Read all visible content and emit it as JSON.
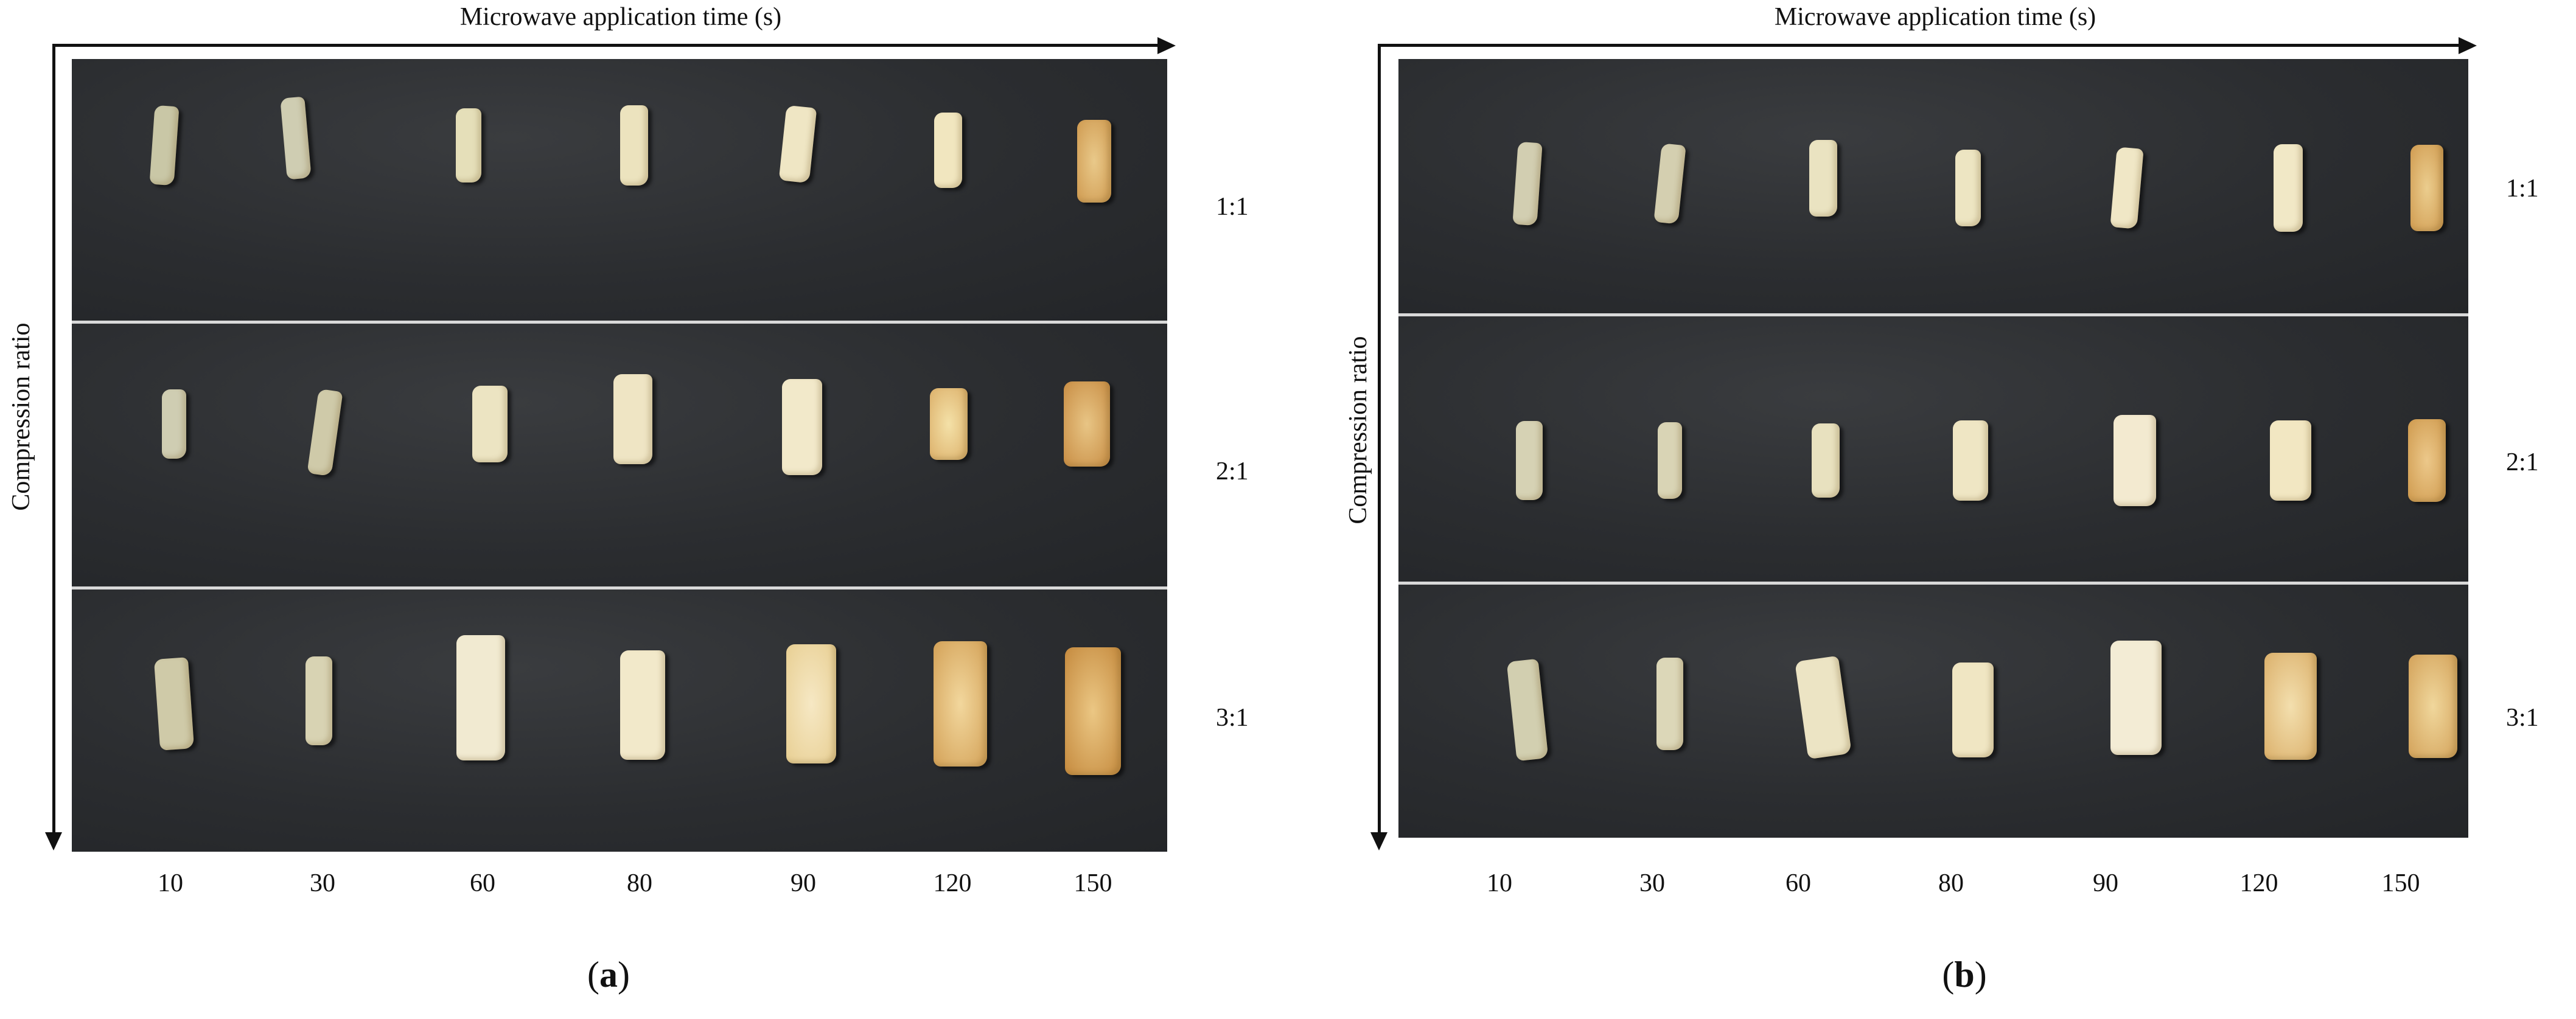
{
  "panels": [
    {
      "id": "a",
      "label_open": "(",
      "label_letter": "a",
      "label_close": ")",
      "x_axis_title": "Microwave application time (s)",
      "y_axis_title": "Compression ratio",
      "x_ticks": [
        "10",
        "30",
        "60",
        "80",
        "90",
        "120",
        "150"
      ],
      "rows": [
        "1:1",
        "2:1",
        "3:1"
      ]
    },
    {
      "id": "b",
      "label_open": "(",
      "label_letter": "b",
      "label_close": ")",
      "x_axis_title": "Microwave application time (s)",
      "y_axis_title": "Compression ratio",
      "x_ticks": [
        "10",
        "30",
        "60",
        "80",
        "90",
        "120",
        "150"
      ],
      "rows": [
        "1:1",
        "2:1",
        "3:1"
      ]
    }
  ]
}
